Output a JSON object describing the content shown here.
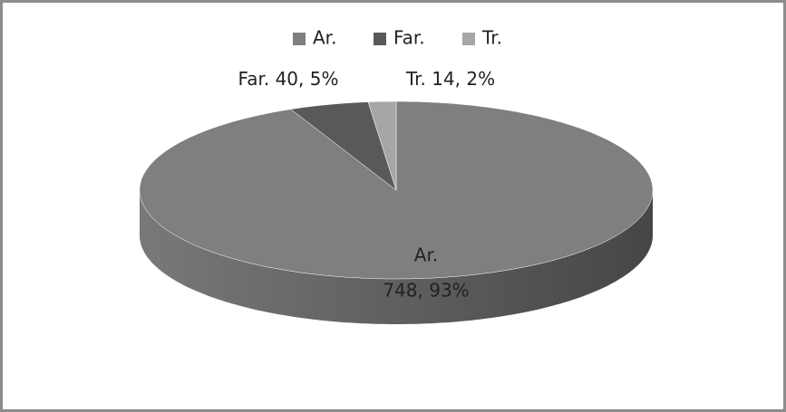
{
  "chart_data": {
    "type": "pie",
    "categories": [
      "Ar.",
      "Far.",
      "Tr."
    ],
    "values": [
      748,
      40,
      14
    ],
    "value_labels": [
      "748, 93%",
      "40, 5%",
      "14, 2%"
    ],
    "colors": [
      "#7f7f7f",
      "#595959",
      "#a6a6a6"
    ],
    "legend": "top"
  }
}
